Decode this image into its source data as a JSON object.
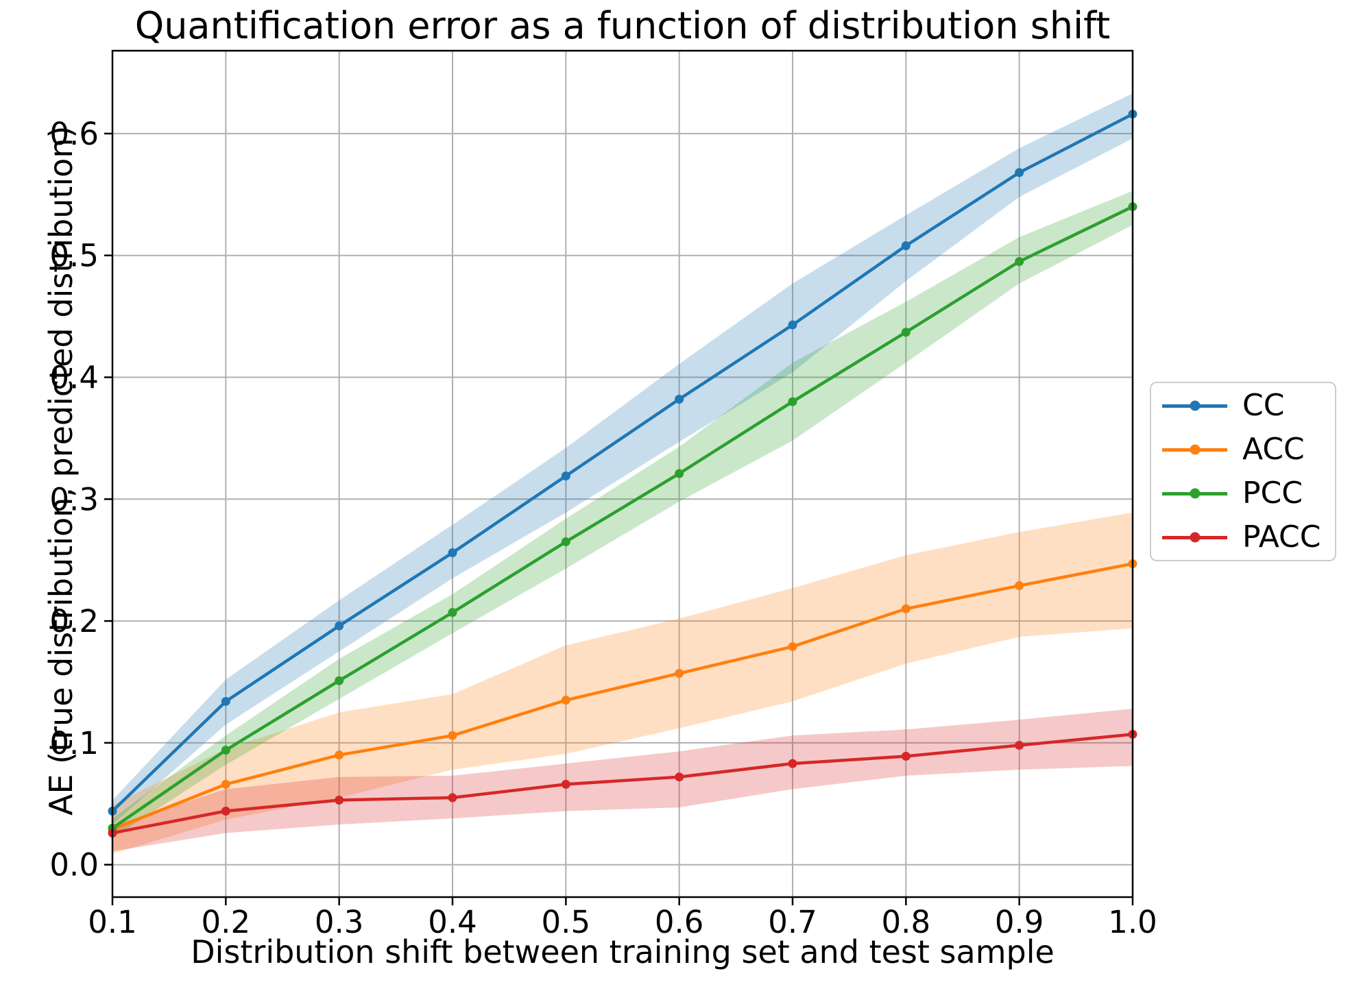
{
  "chart_data": {
    "type": "line",
    "title": "Quantification error as a function of distribution shift",
    "xlabel": "Distribution shift between training set and test sample",
    "ylabel": "AE (true distribution, predicted distribution)",
    "x": [
      0.1,
      0.2,
      0.3,
      0.4,
      0.5,
      0.6,
      0.7,
      0.8,
      0.9,
      1.0
    ],
    "series": [
      {
        "name": "CC",
        "color": "#1f77b4",
        "values": [
          0.044,
          0.134,
          0.196,
          0.256,
          0.319,
          0.382,
          0.443,
          0.508,
          0.568,
          0.616
        ],
        "band_lower": [
          0.033,
          0.115,
          0.175,
          0.235,
          0.289,
          0.347,
          0.404,
          0.479,
          0.548,
          0.596
        ],
        "band_upper": [
          0.053,
          0.152,
          0.217,
          0.279,
          0.342,
          0.411,
          0.477,
          0.533,
          0.588,
          0.633
        ]
      },
      {
        "name": "ACC",
        "color": "#ff7f0e",
        "values": [
          0.029,
          0.066,
          0.09,
          0.106,
          0.135,
          0.157,
          0.179,
          0.21,
          0.229,
          0.247
        ],
        "band_lower": [
          0.009,
          0.037,
          0.055,
          0.078,
          0.091,
          0.112,
          0.134,
          0.165,
          0.187,
          0.194
        ],
        "band_upper": [
          0.049,
          0.095,
          0.125,
          0.14,
          0.18,
          0.202,
          0.227,
          0.254,
          0.273,
          0.289
        ]
      },
      {
        "name": "PCC",
        "color": "#2ca02c",
        "values": [
          0.03,
          0.094,
          0.151,
          0.207,
          0.265,
          0.321,
          0.38,
          0.437,
          0.495,
          0.54
        ],
        "band_lower": [
          0.022,
          0.082,
          0.136,
          0.19,
          0.243,
          0.298,
          0.348,
          0.412,
          0.477,
          0.525
        ],
        "band_upper": [
          0.038,
          0.106,
          0.169,
          0.222,
          0.284,
          0.343,
          0.412,
          0.462,
          0.515,
          0.553
        ]
      },
      {
        "name": "PACC",
        "color": "#d62728",
        "values": [
          0.026,
          0.044,
          0.053,
          0.055,
          0.066,
          0.072,
          0.083,
          0.089,
          0.098,
          0.107
        ],
        "band_lower": [
          0.011,
          0.026,
          0.033,
          0.038,
          0.044,
          0.047,
          0.062,
          0.073,
          0.078,
          0.081
        ],
        "band_upper": [
          0.032,
          0.062,
          0.072,
          0.073,
          0.083,
          0.093,
          0.106,
          0.111,
          0.119,
          0.128
        ]
      }
    ],
    "xtick_labels": [
      "0.1",
      "0.2",
      "0.3",
      "0.4",
      "0.5",
      "0.6",
      "0.7",
      "0.8",
      "0.9",
      "1.0"
    ],
    "ytick_labels": [
      "0.0",
      "0.1",
      "0.2",
      "0.3",
      "0.4",
      "0.5",
      "0.6"
    ],
    "xlim": [
      0.1,
      1.0
    ],
    "ylim": [
      -0.0266,
      0.668
    ],
    "grid": true,
    "band_opacity": 0.25,
    "grid_color": "#b0b0b0",
    "spine_color": "#000000",
    "legend_position": "outside-right"
  }
}
